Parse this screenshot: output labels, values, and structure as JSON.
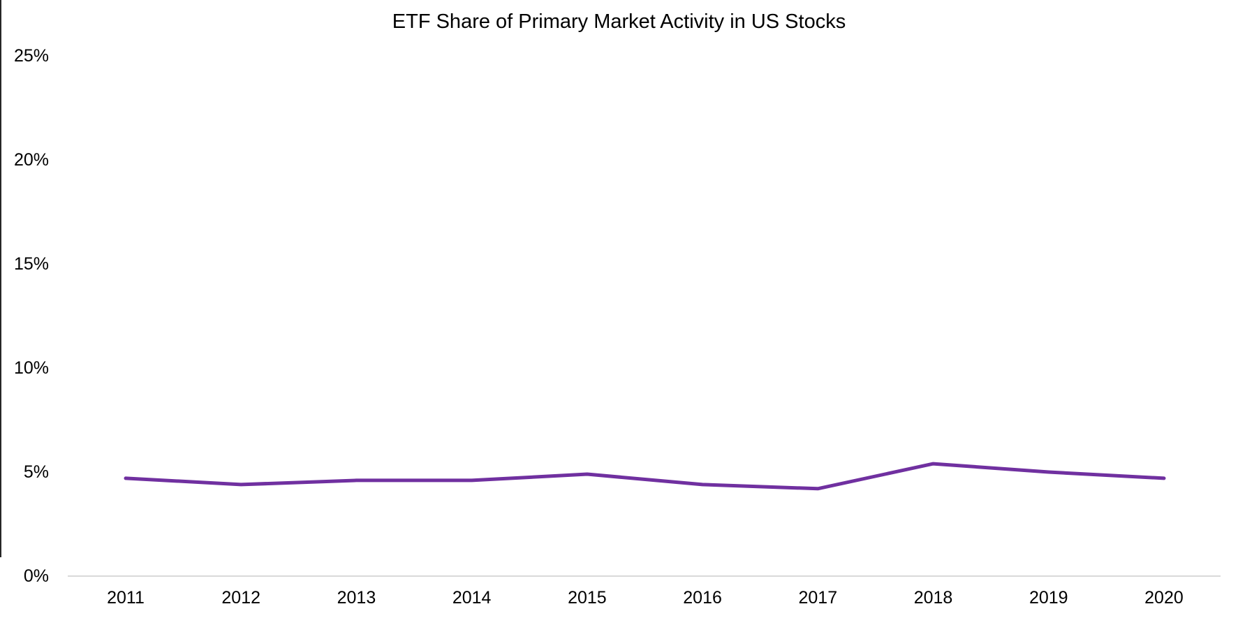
{
  "chart_data": {
    "type": "line",
    "title": "ETF Share of Primary Market Activity in US Stocks",
    "x": [
      "2011",
      "2012",
      "2013",
      "2014",
      "2015",
      "2016",
      "2017",
      "2018",
      "2019",
      "2020"
    ],
    "values": [
      4.7,
      4.4,
      4.6,
      4.6,
      4.9,
      4.4,
      4.2,
      5.4,
      5.0,
      4.7
    ],
    "unit": "%",
    "xlabel": "",
    "ylabel": "",
    "ylim": [
      0,
      25
    ],
    "y_ticks": [
      "0%",
      "5%",
      "10%",
      "15%",
      "20%",
      "25%"
    ],
    "y_tick_values": [
      0,
      5,
      10,
      15,
      20,
      25
    ],
    "grid": false,
    "legend": "none",
    "line_color": "#7030A0",
    "axis_line_color": "#D9D9D9",
    "text_color": "#000000"
  }
}
